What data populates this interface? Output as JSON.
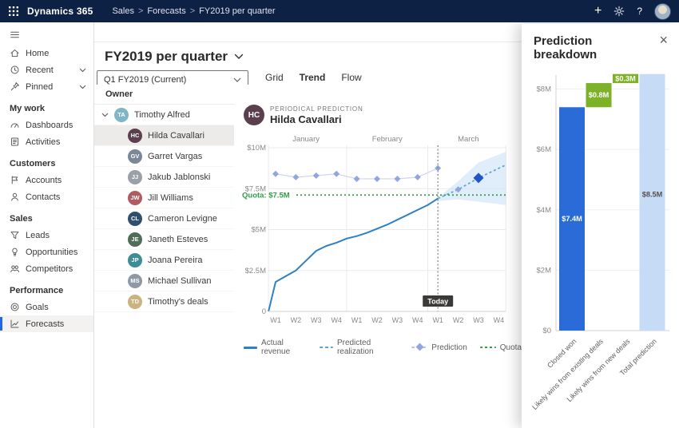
{
  "topbar": {
    "brand": "Dynamics 365",
    "breadcrumb": {
      "items": [
        "Sales",
        "Forecasts",
        "FY2019 per quarter"
      ],
      "separator": ">"
    },
    "plus": "+",
    "help": "?"
  },
  "sidebar": {
    "groups": [
      {
        "header": "",
        "items": [
          {
            "label": "Home"
          },
          {
            "label": "Recent"
          },
          {
            "label": "Pinned"
          }
        ]
      },
      {
        "header": "My work",
        "items": [
          {
            "label": "Dashboards"
          },
          {
            "label": "Activities"
          }
        ]
      },
      {
        "header": "Customers",
        "items": [
          {
            "label": "Accounts"
          },
          {
            "label": "Contacts"
          }
        ]
      },
      {
        "header": "Sales",
        "items": [
          {
            "label": "Leads"
          },
          {
            "label": "Opportunities"
          },
          {
            "label": "Competitors"
          }
        ]
      },
      {
        "header": "Performance",
        "items": [
          {
            "label": "Goals"
          },
          {
            "label": "Forecasts"
          }
        ]
      }
    ]
  },
  "page": {
    "title": "FY2019 per quarter",
    "period_selector": "Q1 FY2019 (Current)",
    "tabs": [
      "Grid",
      "Trend",
      "Flow"
    ],
    "active_tab": "Trend"
  },
  "owners": {
    "column_header": "Owner",
    "selected": "Hilda Cavallari",
    "rows": [
      {
        "name": "Timothy Alfred",
        "initials": "TA"
      },
      {
        "name": "Hilda Cavallari",
        "initials": "HC"
      },
      {
        "name": "Garret Vargas",
        "initials": "GV"
      },
      {
        "name": "Jakub Jablonski",
        "initials": "JJ"
      },
      {
        "name": "Jill Williams",
        "initials": "JW"
      },
      {
        "name": "Cameron Levigne",
        "initials": "CL"
      },
      {
        "name": "Janeth Esteves",
        "initials": "JE"
      },
      {
        "name": "Joana Pereira",
        "initials": "JP"
      },
      {
        "name": "Michael Sullivan",
        "initials": "MS"
      },
      {
        "name": "Timothy's deals",
        "initials": "TD"
      }
    ]
  },
  "trend_header": {
    "eyebrow": "PERIODICAL PREDICTION",
    "person": "Hilda Cavallari",
    "initials": "HC"
  },
  "panel": {
    "title": "Prediction breakdown",
    "close": "×"
  },
  "chart_data": [
    {
      "type": "line",
      "title": "Periodical prediction",
      "person": "Hilda Cavallari",
      "months": [
        "January",
        "February",
        "March"
      ],
      "week_labels": [
        "W1",
        "W2",
        "W3",
        "W4",
        "W1",
        "W2",
        "W3",
        "W4",
        "W1",
        "W2",
        "W3",
        "W4"
      ],
      "y_ticks": [
        {
          "label": "$10M",
          "value": 10
        },
        {
          "label": "$7.5M",
          "value": 7.5
        },
        {
          "label": "$5M",
          "value": 5
        },
        {
          "label": "$2.5M",
          "value": 2.5
        },
        {
          "label": "0",
          "value": 0
        }
      ],
      "ylim": [
        0,
        10.5
      ],
      "quota": {
        "value": 7.5,
        "label": "Quota: $7.5M",
        "color": "#2f9e44"
      },
      "today": {
        "week": 8,
        "label": "Today"
      },
      "series": [
        {
          "name": "Actual revenue",
          "style": "solid",
          "color": "#2e81c4",
          "points": [
            [
              -0.35,
              0
            ],
            [
              0,
              1.8
            ],
            [
              0.5,
              2.15
            ],
            [
              1,
              2.5
            ],
            [
              1.5,
              3.1
            ],
            [
              2,
              3.7
            ],
            [
              2.5,
              4.0
            ],
            [
              3,
              4.2
            ],
            [
              3.5,
              4.45
            ],
            [
              4,
              4.6
            ],
            [
              4.5,
              4.8
            ],
            [
              5,
              5.05
            ],
            [
              5.5,
              5.3
            ],
            [
              6,
              5.6
            ],
            [
              6.5,
              5.9
            ],
            [
              7,
              6.2
            ],
            [
              7.5,
              6.5
            ],
            [
              8,
              6.9
            ]
          ]
        },
        {
          "name": "Prediction",
          "style": "diamond",
          "color": "#92a5df",
          "line_color": "#ccd4ec",
          "points": [
            [
              0,
              8.4
            ],
            [
              1,
              8.2
            ],
            [
              2,
              8.3
            ],
            [
              3,
              8.4
            ],
            [
              4,
              8.1
            ],
            [
              5,
              8.1
            ],
            [
              6,
              8.1
            ],
            [
              7,
              8.2
            ],
            [
              8,
              8.75
            ]
          ]
        },
        {
          "name": "Predicted realization",
          "style": "dashed",
          "color": "#58a6d8",
          "points": [
            [
              8,
              6.9
            ],
            [
              9,
              7.45
            ],
            [
              10,
              8.15
            ],
            [
              11.35,
              8.95
            ]
          ]
        }
      ],
      "confidence_band": {
        "color": "#c7def5",
        "upper": [
          [
            8,
            6.95
          ],
          [
            9,
            7.95
          ],
          [
            10,
            9.1
          ],
          [
            11.35,
            9.75
          ]
        ],
        "lower": [
          [
            11.35,
            6.5
          ],
          [
            10,
            6.7
          ],
          [
            9,
            6.85
          ],
          [
            8,
            6.75
          ]
        ]
      },
      "markers": [
        {
          "week": 9,
          "value": 7.45,
          "size": "small",
          "color": "#92a5df"
        },
        {
          "week": 10,
          "value": 8.15,
          "size": "large",
          "color": "#2255c8"
        }
      ],
      "legend": [
        "Actual revenue",
        "Predicted realization",
        "Prediction",
        "Quota"
      ]
    },
    {
      "type": "bar",
      "subtype": "waterfall",
      "title": "Prediction breakdown",
      "categories": [
        "Closed won",
        "Likely wins from existing deals",
        "Likely wins from new deals",
        "Total prediction"
      ],
      "values": [
        7.4,
        0.8,
        0.3,
        8.5
      ],
      "value_labels": [
        "$7.4M",
        "$0.8M",
        "$0.3M",
        "$8.5M"
      ],
      "kinds": [
        "base",
        "delta",
        "delta",
        "total"
      ],
      "y_ticks": [
        {
          "label": "$8M",
          "value": 8
        },
        {
          "label": "$6M",
          "value": 6
        },
        {
          "label": "$4M",
          "value": 4
        },
        {
          "label": "$2M",
          "value": 2
        },
        {
          "label": "$0",
          "value": 0
        }
      ],
      "ylim": [
        0,
        8.8
      ],
      "colors": {
        "base": "#2a6bd8",
        "delta": "#7db228",
        "total": "#c6dbf6"
      }
    }
  ]
}
